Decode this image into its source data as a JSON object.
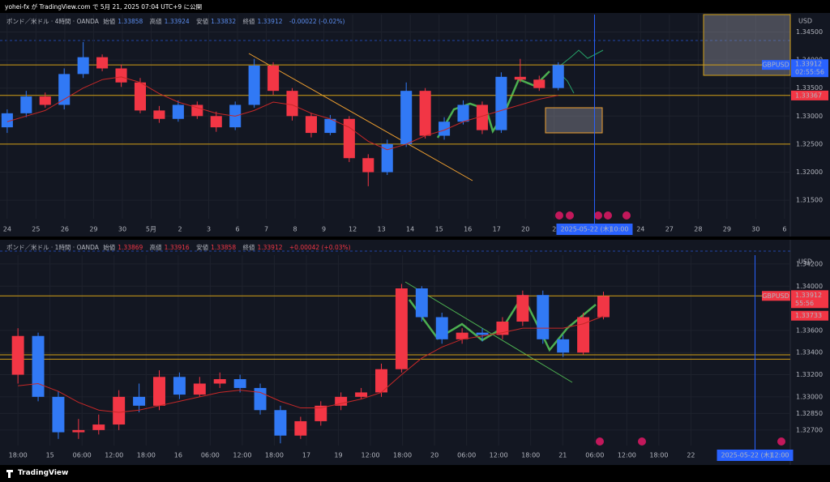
{
  "header": {
    "text": "yohei-fx が TradingView.com で 5月 21, 2025 07:04 UTC+9 に公開"
  },
  "footer": {
    "brand": "TradingView"
  },
  "chart_data": [
    {
      "type": "candlestick",
      "title": "ポンド／米ドル · 4時間 · OANDA",
      "legend": {
        "open_label": "始値",
        "open": 1.33858,
        "high_label": "高値",
        "high": 1.33924,
        "low_label": "安値",
        "low": 1.33832,
        "close_label": "終値",
        "close": 1.33912,
        "change": "-0.00022 (-0.02%)"
      },
      "currency": "USD",
      "symbol": "GBPUSD",
      "last_price": {
        "value": 1.33912,
        "label": "1.33912"
      },
      "countdown": "02:55:56",
      "last_price_color": "#2962ff",
      "ma_label": {
        "value": 1.33367,
        "label": "1.33367"
      },
      "levels": [
        1.3337,
        1.325
      ],
      "cursor_x": 20.4,
      "cursor_date": "2025-05-22 (木)",
      "cursor_time": "10:00",
      "up_color": "#3179f5",
      "down_color": "#f23645",
      "ma_color": "#c62828",
      "level_color": "#d4a017",
      "grid": true,
      "xlim": [
        -0.25,
        27.2
      ],
      "ylim": [
        1.3117,
        1.3481
      ],
      "xticks": [
        {
          "value": 0,
          "label": "24"
        },
        {
          "value": 1,
          "label": "25"
        },
        {
          "value": 2,
          "label": "26"
        },
        {
          "value": 3,
          "label": "29"
        },
        {
          "value": 4,
          "label": "30"
        },
        {
          "value": 5,
          "label": "5月"
        },
        {
          "value": 6,
          "label": "2"
        },
        {
          "value": 7,
          "label": "3"
        },
        {
          "value": 8,
          "label": "6"
        },
        {
          "value": 9,
          "label": "7"
        },
        {
          "value": 10,
          "label": "8"
        },
        {
          "value": 11,
          "label": "9"
        },
        {
          "value": 12,
          "label": "12"
        },
        {
          "value": 13,
          "label": "13"
        },
        {
          "value": 14,
          "label": "14"
        },
        {
          "value": 15,
          "label": "15"
        },
        {
          "value": 16,
          "label": "16"
        },
        {
          "value": 17,
          "label": "17"
        },
        {
          "value": 18,
          "label": "20"
        },
        {
          "value": 19,
          "label": "2"
        },
        {
          "value": 22,
          "label": "24"
        },
        {
          "value": 23,
          "label": "27"
        },
        {
          "value": 24,
          "label": "28"
        },
        {
          "value": 25,
          "label": "29"
        },
        {
          "value": 26,
          "label": "30"
        },
        {
          "value": 27,
          "label": "6"
        }
      ],
      "yticks": [
        {
          "value": 1.315,
          "label": "1.31500"
        },
        {
          "value": 1.32,
          "label": "1.32000"
        },
        {
          "value": 1.325,
          "label": "1.32500"
        },
        {
          "value": 1.33,
          "label": "1.33000"
        },
        {
          "value": 1.335,
          "label": "1.33500"
        },
        {
          "value": 1.34,
          "label": "1.34000"
        },
        {
          "value": 1.345,
          "label": "1.34500"
        }
      ],
      "x": [
        0,
        0.66,
        1.32,
        1.98,
        2.64,
        3.3,
        3.96,
        4.62,
        5.28,
        5.94,
        6.6,
        7.26,
        7.92,
        8.58,
        9.24,
        9.9,
        10.56,
        11.22,
        11.88,
        12.54,
        13.2,
        13.86,
        14.52,
        15.18,
        15.84,
        16.5,
        17.16,
        17.82,
        18.48,
        19.14
      ],
      "open": [
        1.328,
        1.3305,
        1.3335,
        1.332,
        1.3375,
        1.3405,
        1.3385,
        1.336,
        1.331,
        1.3295,
        1.332,
        1.33,
        1.328,
        1.332,
        1.339,
        1.3345,
        1.33,
        1.327,
        1.3295,
        1.3225,
        1.32,
        1.325,
        1.3345,
        1.3265,
        1.329,
        1.332,
        1.3275,
        1.337,
        1.3365,
        1.335
      ],
      "high": [
        1.3312,
        1.3345,
        1.3342,
        1.3385,
        1.3432,
        1.341,
        1.3392,
        1.3368,
        1.3318,
        1.3328,
        1.3326,
        1.3308,
        1.3326,
        1.3402,
        1.3396,
        1.335,
        1.3306,
        1.3302,
        1.33,
        1.3232,
        1.3258,
        1.336,
        1.335,
        1.3298,
        1.3328,
        1.3326,
        1.3378,
        1.3402,
        1.3372,
        1.3396
      ],
      "low": [
        1.327,
        1.3298,
        1.3315,
        1.3312,
        1.3368,
        1.338,
        1.3352,
        1.3305,
        1.3288,
        1.329,
        1.3295,
        1.3272,
        1.3275,
        1.3315,
        1.3338,
        1.3292,
        1.3262,
        1.3266,
        1.3218,
        1.3175,
        1.3195,
        1.3245,
        1.326,
        1.3258,
        1.3285,
        1.3268,
        1.327,
        1.336,
        1.3345,
        1.3346
      ],
      "close": [
        1.3305,
        1.3335,
        1.332,
        1.3375,
        1.3405,
        1.3385,
        1.336,
        1.331,
        1.3295,
        1.332,
        1.33,
        1.328,
        1.332,
        1.339,
        1.3345,
        1.33,
        1.327,
        1.3295,
        1.3225,
        1.32,
        1.325,
        1.3345,
        1.3265,
        1.329,
        1.332,
        1.3275,
        1.337,
        1.3365,
        1.335,
        1.3391
      ],
      "ma": [
        1.329,
        1.33,
        1.331,
        1.333,
        1.335,
        1.3365,
        1.337,
        1.336,
        1.334,
        1.3325,
        1.3315,
        1.3305,
        1.33,
        1.331,
        1.3325,
        1.332,
        1.3305,
        1.3295,
        1.328,
        1.3255,
        1.324,
        1.325,
        1.3265,
        1.3275,
        1.329,
        1.33,
        1.331,
        1.332,
        1.333,
        1.3337
      ]
    },
    {
      "type": "candlestick",
      "title": "ポンド／米ドル · 1時間 · OANDA",
      "legend": {
        "open_label": "始値",
        "open": 1.33869,
        "high_label": "高値",
        "high": 1.33916,
        "low_label": "安値",
        "low": 1.33858,
        "close_label": "終値",
        "close": 1.33912,
        "change": "+0.00042 (+0.03%)"
      },
      "currency": "USD",
      "symbol": "GBPUSD",
      "last_price": {
        "value": 1.33912,
        "label": "1.33912"
      },
      "countdown": "55:56",
      "last_price_color": "#f23645",
      "ma_label": {
        "value": 1.33733,
        "label": "1.33733"
      },
      "levels": [
        1.3338,
        1.3334
      ],
      "cursor_x": 23,
      "cursor_date": "2025-05-22 (木)",
      "cursor_time": "12:00",
      "up_color": "#f23645",
      "down_color": "#3179f5",
      "ma_color": "#c62828",
      "level_color": "#d4a017",
      "grid": true,
      "xlim": [
        -0.56,
        24.1
      ],
      "ylim": [
        1.3256,
        1.3428
      ],
      "xticks": [
        {
          "value": 0,
          "label": "18:00"
        },
        {
          "value": 1,
          "label": "15"
        },
        {
          "value": 2,
          "label": "06:00"
        },
        {
          "value": 3,
          "label": "12:00"
        },
        {
          "value": 4,
          "label": "18:00"
        },
        {
          "value": 5,
          "label": "16"
        },
        {
          "value": 6,
          "label": "06:00"
        },
        {
          "value": 7,
          "label": "12:00"
        },
        {
          "value": 8,
          "label": "18:00"
        },
        {
          "value": 9,
          "label": "17"
        },
        {
          "value": 10,
          "label": "19"
        },
        {
          "value": 11,
          "label": "12:00"
        },
        {
          "value": 12,
          "label": "18:00"
        },
        {
          "value": 13,
          "label": "20"
        },
        {
          "value": 14,
          "label": "06:00"
        },
        {
          "value": 15,
          "label": "12:00"
        },
        {
          "value": 16,
          "label": "18:00"
        },
        {
          "value": 17,
          "label": "21"
        },
        {
          "value": 18,
          "label": "06:00"
        },
        {
          "value": 19,
          "label": "12:00"
        },
        {
          "value": 20,
          "label": "18:00"
        },
        {
          "value": 21,
          "label": "22"
        }
      ],
      "yticks": [
        {
          "value": 1.327,
          "label": "1.32700"
        },
        {
          "value": 1.3285,
          "label": "1.32850"
        },
        {
          "value": 1.33,
          "label": "1.33000"
        },
        {
          "value": 1.332,
          "label": "1.33200"
        },
        {
          "value": 1.334,
          "label": "1.33400"
        },
        {
          "value": 1.336,
          "label": "1.33600"
        },
        {
          "value": 1.34,
          "label": "1.34000"
        },
        {
          "value": 1.342,
          "label": "1.34200"
        }
      ],
      "x": [
        0,
        0.63,
        1.26,
        1.89,
        2.52,
        3.15,
        3.78,
        4.41,
        5.04,
        5.67,
        6.3,
        6.93,
        7.56,
        8.19,
        8.82,
        9.45,
        10.08,
        10.71,
        11.34,
        11.97,
        12.6,
        13.23,
        13.86,
        14.49,
        15.12,
        15.75,
        16.38,
        17.01,
        17.64,
        18.27
      ],
      "open": [
        1.332,
        1.3355,
        1.33,
        1.3268,
        1.327,
        1.3275,
        1.33,
        1.3292,
        1.3318,
        1.3302,
        1.3312,
        1.3316,
        1.3308,
        1.3288,
        1.3265,
        1.3278,
        1.3292,
        1.33,
        1.3304,
        1.3325,
        1.3398,
        1.3372,
        1.3352,
        1.3358,
        1.3356,
        1.3368,
        1.3392,
        1.3352,
        1.334,
        1.3372
      ],
      "high": [
        1.3362,
        1.3358,
        1.3305,
        1.328,
        1.3284,
        1.3306,
        1.3312,
        1.3324,
        1.3322,
        1.3318,
        1.3322,
        1.332,
        1.3312,
        1.3292,
        1.3282,
        1.3296,
        1.3304,
        1.3308,
        1.333,
        1.3402,
        1.34,
        1.3376,
        1.3362,
        1.3362,
        1.3372,
        1.3396,
        1.3396,
        1.3356,
        1.3376,
        1.3395
      ],
      "low": [
        1.3312,
        1.3296,
        1.3262,
        1.3262,
        1.3266,
        1.327,
        1.3286,
        1.3288,
        1.3298,
        1.33,
        1.3308,
        1.3304,
        1.3284,
        1.3258,
        1.3262,
        1.3274,
        1.3288,
        1.3298,
        1.33,
        1.3322,
        1.3368,
        1.3348,
        1.3348,
        1.335,
        1.3352,
        1.3364,
        1.3348,
        1.3336,
        1.3338,
        1.337
      ],
      "close": [
        1.3355,
        1.33,
        1.3268,
        1.327,
        1.3275,
        1.33,
        1.3292,
        1.3318,
        1.3302,
        1.3312,
        1.3316,
        1.3308,
        1.3288,
        1.3265,
        1.3278,
        1.3292,
        1.33,
        1.3304,
        1.3325,
        1.3398,
        1.3372,
        1.3352,
        1.3358,
        1.3356,
        1.3368,
        1.3392,
        1.3352,
        1.334,
        1.3372,
        1.3391
      ],
      "ma": [
        1.331,
        1.3312,
        1.3305,
        1.3295,
        1.3288,
        1.3286,
        1.3288,
        1.3292,
        1.3296,
        1.33,
        1.3304,
        1.3306,
        1.3304,
        1.3296,
        1.329,
        1.329,
        1.3294,
        1.3298,
        1.3304,
        1.332,
        1.3335,
        1.3345,
        1.3352,
        1.3355,
        1.3358,
        1.3362,
        1.3362,
        1.3362,
        1.3366,
        1.3373
      ]
    }
  ]
}
